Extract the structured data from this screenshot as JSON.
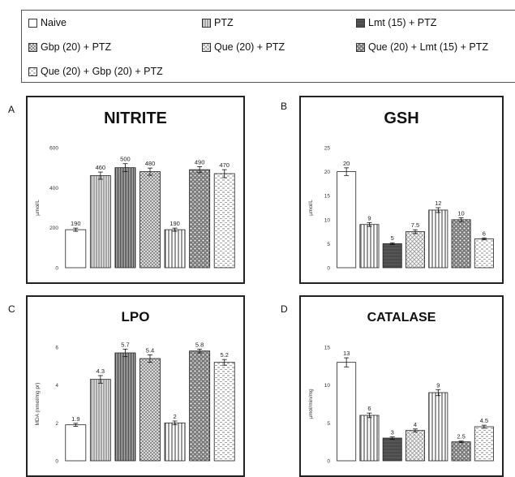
{
  "legend": [
    {
      "label": "Naive",
      "pattern": "p-white"
    },
    {
      "label": "PTZ",
      "pattern": "p-vgray"
    },
    {
      "label": "Lmt (15) + PTZ",
      "pattern": "p-dark"
    },
    {
      "label": "Gbp (20) + PTZ",
      "pattern": "p-grid"
    },
    {
      "label": "Que (20) + PTZ",
      "pattern": "p-diag"
    },
    {
      "label": "Que (20) + Lmt (15) + PTZ",
      "pattern": "p-dots"
    },
    {
      "label": "Que (20) + Gbp (20) + PTZ",
      "pattern": "p-dash"
    }
  ],
  "panels": [
    {
      "letter": "A"
    },
    {
      "letter": "B"
    },
    {
      "letter": "C"
    },
    {
      "letter": "D"
    }
  ],
  "chart_data": [
    {
      "type": "bar",
      "title": "NITRITE",
      "ylabel": "µmol/L",
      "ylim": [
        0,
        600
      ],
      "yticks": [
        "0",
        "200",
        "400",
        "600"
      ],
      "values": [
        190,
        460,
        500,
        480,
        190,
        490,
        470
      ],
      "labels": [
        "190",
        "460",
        "500",
        "480",
        "190",
        "490",
        "470"
      ],
      "errors": [
        8,
        18,
        20,
        18,
        8,
        15,
        20
      ],
      "patterns": [
        "p-white",
        "p-vgray",
        "p-vdense",
        "p-grid",
        "p-vlines",
        "p-dots",
        "p-dash"
      ]
    },
    {
      "type": "bar",
      "title": "GSH",
      "ylabel": "µmol/L",
      "ylim": [
        0,
        25
      ],
      "yticks": [
        "0",
        "5",
        "10",
        "15",
        "20",
        "25"
      ],
      "values": [
        20,
        9,
        5,
        7.5,
        12,
        10,
        6
      ],
      "labels": [
        "20",
        "9",
        "5",
        "7.5",
        "12",
        "10",
        "6"
      ],
      "errors": [
        0.8,
        0.4,
        0.2,
        0.4,
        0.5,
        0.4,
        0.2
      ],
      "patterns": [
        "p-white",
        "p-vlines",
        "p-dark",
        "p-diag",
        "p-vlines",
        "p-dots",
        "p-dash"
      ]
    },
    {
      "type": "bar",
      "title": "LPO",
      "ylabel": "MDA (nmol/mg pr)",
      "ylim": [
        0,
        6
      ],
      "yticks": [
        "0",
        "2",
        "4",
        "6"
      ],
      "values": [
        1.9,
        4.3,
        5.7,
        5.4,
        2,
        5.8,
        5.2
      ],
      "labels": [
        "1.9",
        "4.3",
        "5.7",
        "5.4",
        "2",
        "5.8",
        "5.2"
      ],
      "errors": [
        0.08,
        0.2,
        0.2,
        0.2,
        0.1,
        0.1,
        0.15
      ],
      "patterns": [
        "p-white",
        "p-vgray",
        "p-vdense",
        "p-grid",
        "p-vlines",
        "p-dots",
        "p-dash"
      ]
    },
    {
      "type": "bar",
      "title": "CATALASE",
      "ylabel": "µmol/min/mg",
      "ylim": [
        0,
        15
      ],
      "yticks": [
        "0",
        "5",
        "10",
        "15"
      ],
      "values": [
        13,
        6,
        3,
        4,
        9,
        2.5,
        4.5
      ],
      "labels": [
        "13",
        "6",
        "3",
        "4",
        "9",
        "2.5",
        "4.5"
      ],
      "errors": [
        0.6,
        0.3,
        0.15,
        0.2,
        0.4,
        0.1,
        0.2
      ],
      "patterns": [
        "p-white",
        "p-vlines",
        "p-dark",
        "p-diag",
        "p-vlines",
        "p-dots",
        "p-dash"
      ]
    }
  ]
}
